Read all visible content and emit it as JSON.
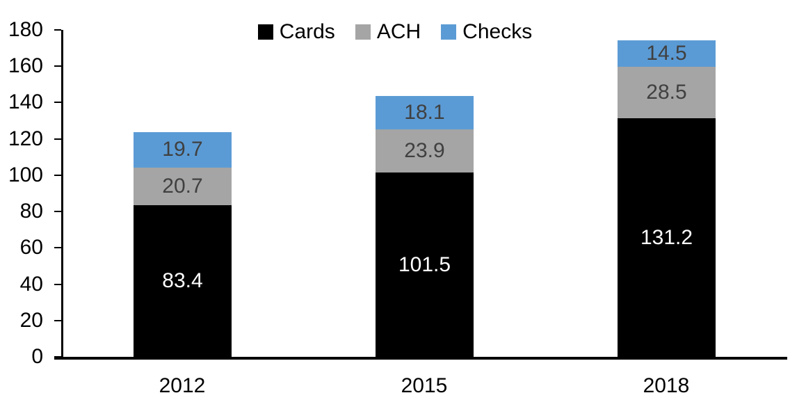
{
  "chart_data": {
    "type": "bar",
    "stacked": true,
    "categories": [
      "2012",
      "2015",
      "2018"
    ],
    "series": [
      {
        "name": "Cards",
        "color": "#000000",
        "label_color": "#ffffff",
        "values": [
          83.4,
          101.5,
          131.2
        ]
      },
      {
        "name": "ACH",
        "color": "#a5a5a5",
        "label_color": "#404040",
        "values": [
          20.7,
          23.9,
          28.5
        ]
      },
      {
        "name": "Checks",
        "color": "#5b9bd5",
        "label_color": "#404040",
        "values": [
          19.7,
          18.1,
          14.5
        ]
      }
    ],
    "value_labels": {
      "2012": {
        "Cards": "83.4",
        "ACH": "20.7",
        "Checks": "19.7"
      },
      "2015": {
        "Cards": "101.5",
        "ACH": "23.9",
        "Checks": "18.1"
      },
      "2018": {
        "Cards": "131.2",
        "ACH": "28.5",
        "Checks": "14.5"
      }
    },
    "ylim": [
      0,
      180
    ],
    "ytick_step": 20,
    "ytick_labels": [
      "0",
      "20",
      "40",
      "60",
      "80",
      "100",
      "120",
      "140",
      "160",
      "180"
    ],
    "legend_position": "top-center",
    "legend_labels": [
      "Cards",
      "ACH",
      "Checks"
    ],
    "grid": false,
    "axis_color": "#000000",
    "text_color": "#000000",
    "background_color": "#ffffff"
  }
}
